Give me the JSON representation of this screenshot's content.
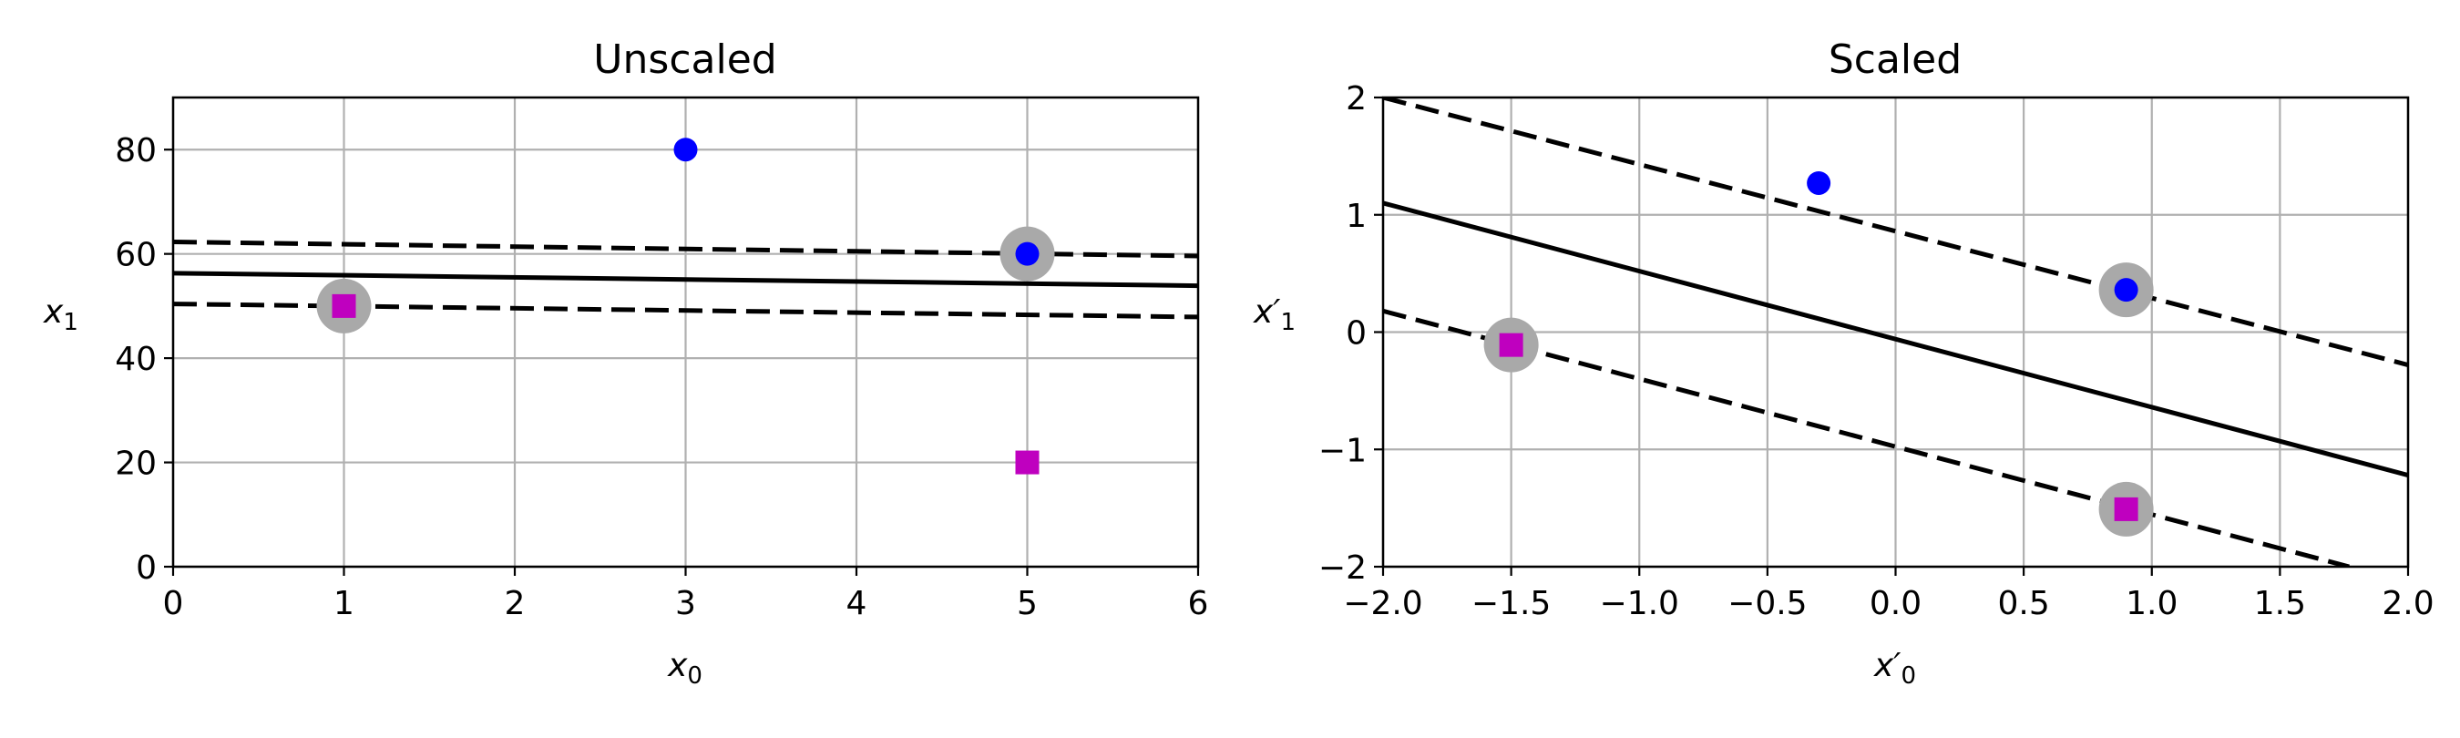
{
  "chart_data": [
    {
      "type": "scatter",
      "title": "Unscaled",
      "xlabel": "x",
      "xlabel_sub": "0",
      "ylabel": "x",
      "ylabel_sub": "1",
      "xlim": [
        0,
        6
      ],
      "ylim": [
        0,
        90
      ],
      "xticks": [
        0,
        1,
        2,
        3,
        4,
        5,
        6
      ],
      "xtick_labels": [
        "0",
        "1",
        "2",
        "3",
        "4",
        "5",
        "6"
      ],
      "yticks": [
        0,
        20,
        40,
        60,
        80
      ],
      "ytick_labels": [
        "0",
        "20",
        "40",
        "60",
        "80"
      ],
      "grid": true,
      "points": [
        {
          "x": 1,
          "y": 50,
          "marker": "square",
          "color": "#bf00bf",
          "support_vector": true
        },
        {
          "x": 5,
          "y": 20,
          "marker": "square",
          "color": "#bf00bf",
          "support_vector": false
        },
        {
          "x": 3,
          "y": 80,
          "marker": "circle",
          "color": "#0000ff",
          "support_vector": false
        },
        {
          "x": 5,
          "y": 60,
          "marker": "circle",
          "color": "#0000ff",
          "support_vector": true
        }
      ],
      "lines": [
        {
          "style": "solid",
          "x": [
            0,
            6
          ],
          "y": [
            56.3,
            53.9
          ]
        },
        {
          "style": "dashed",
          "x": [
            0,
            6
          ],
          "y": [
            62.3,
            59.6
          ]
        },
        {
          "style": "dashed",
          "x": [
            0,
            6
          ],
          "y": [
            50.4,
            47.9
          ]
        }
      ]
    },
    {
      "type": "scatter",
      "title": "Scaled",
      "xlabel": "x′",
      "xlabel_sub": "0",
      "ylabel": "x′",
      "ylabel_sub": "1",
      "xlim": [
        -2,
        2
      ],
      "ylim": [
        -2,
        2
      ],
      "xticks": [
        -2,
        -1.5,
        -1,
        -0.5,
        0,
        0.5,
        1,
        1.5,
        2
      ],
      "xtick_labels": [
        "−2.0",
        "−1.5",
        "−1.0",
        "−0.5",
        "0.0",
        "0.5",
        "1.0",
        "1.5",
        "2.0"
      ],
      "yticks": [
        -2,
        -1,
        0,
        1,
        2
      ],
      "ytick_labels": [
        "−2",
        "−1",
        "0",
        "1",
        "2"
      ],
      "grid": true,
      "points": [
        {
          "x": -1.5,
          "y": -0.11,
          "marker": "square",
          "color": "#bf00bf",
          "support_vector": true
        },
        {
          "x": 0.9,
          "y": -1.51,
          "marker": "square",
          "color": "#bf00bf",
          "support_vector": true
        },
        {
          "x": -0.3,
          "y": 1.27,
          "marker": "circle",
          "color": "#0000ff",
          "support_vector": false
        },
        {
          "x": 0.9,
          "y": 0.36,
          "marker": "circle",
          "color": "#0000ff",
          "support_vector": true
        }
      ],
      "lines": [
        {
          "style": "solid",
          "x": [
            -2,
            2
          ],
          "y": [
            1.1,
            -1.22
          ]
        },
        {
          "style": "dashed",
          "x": [
            -2,
            2
          ],
          "y": [
            2.0,
            -0.28
          ]
        },
        {
          "style": "dashed",
          "x": [
            -2,
            1.77
          ],
          "y": [
            0.18,
            -2.0
          ]
        }
      ]
    }
  ]
}
